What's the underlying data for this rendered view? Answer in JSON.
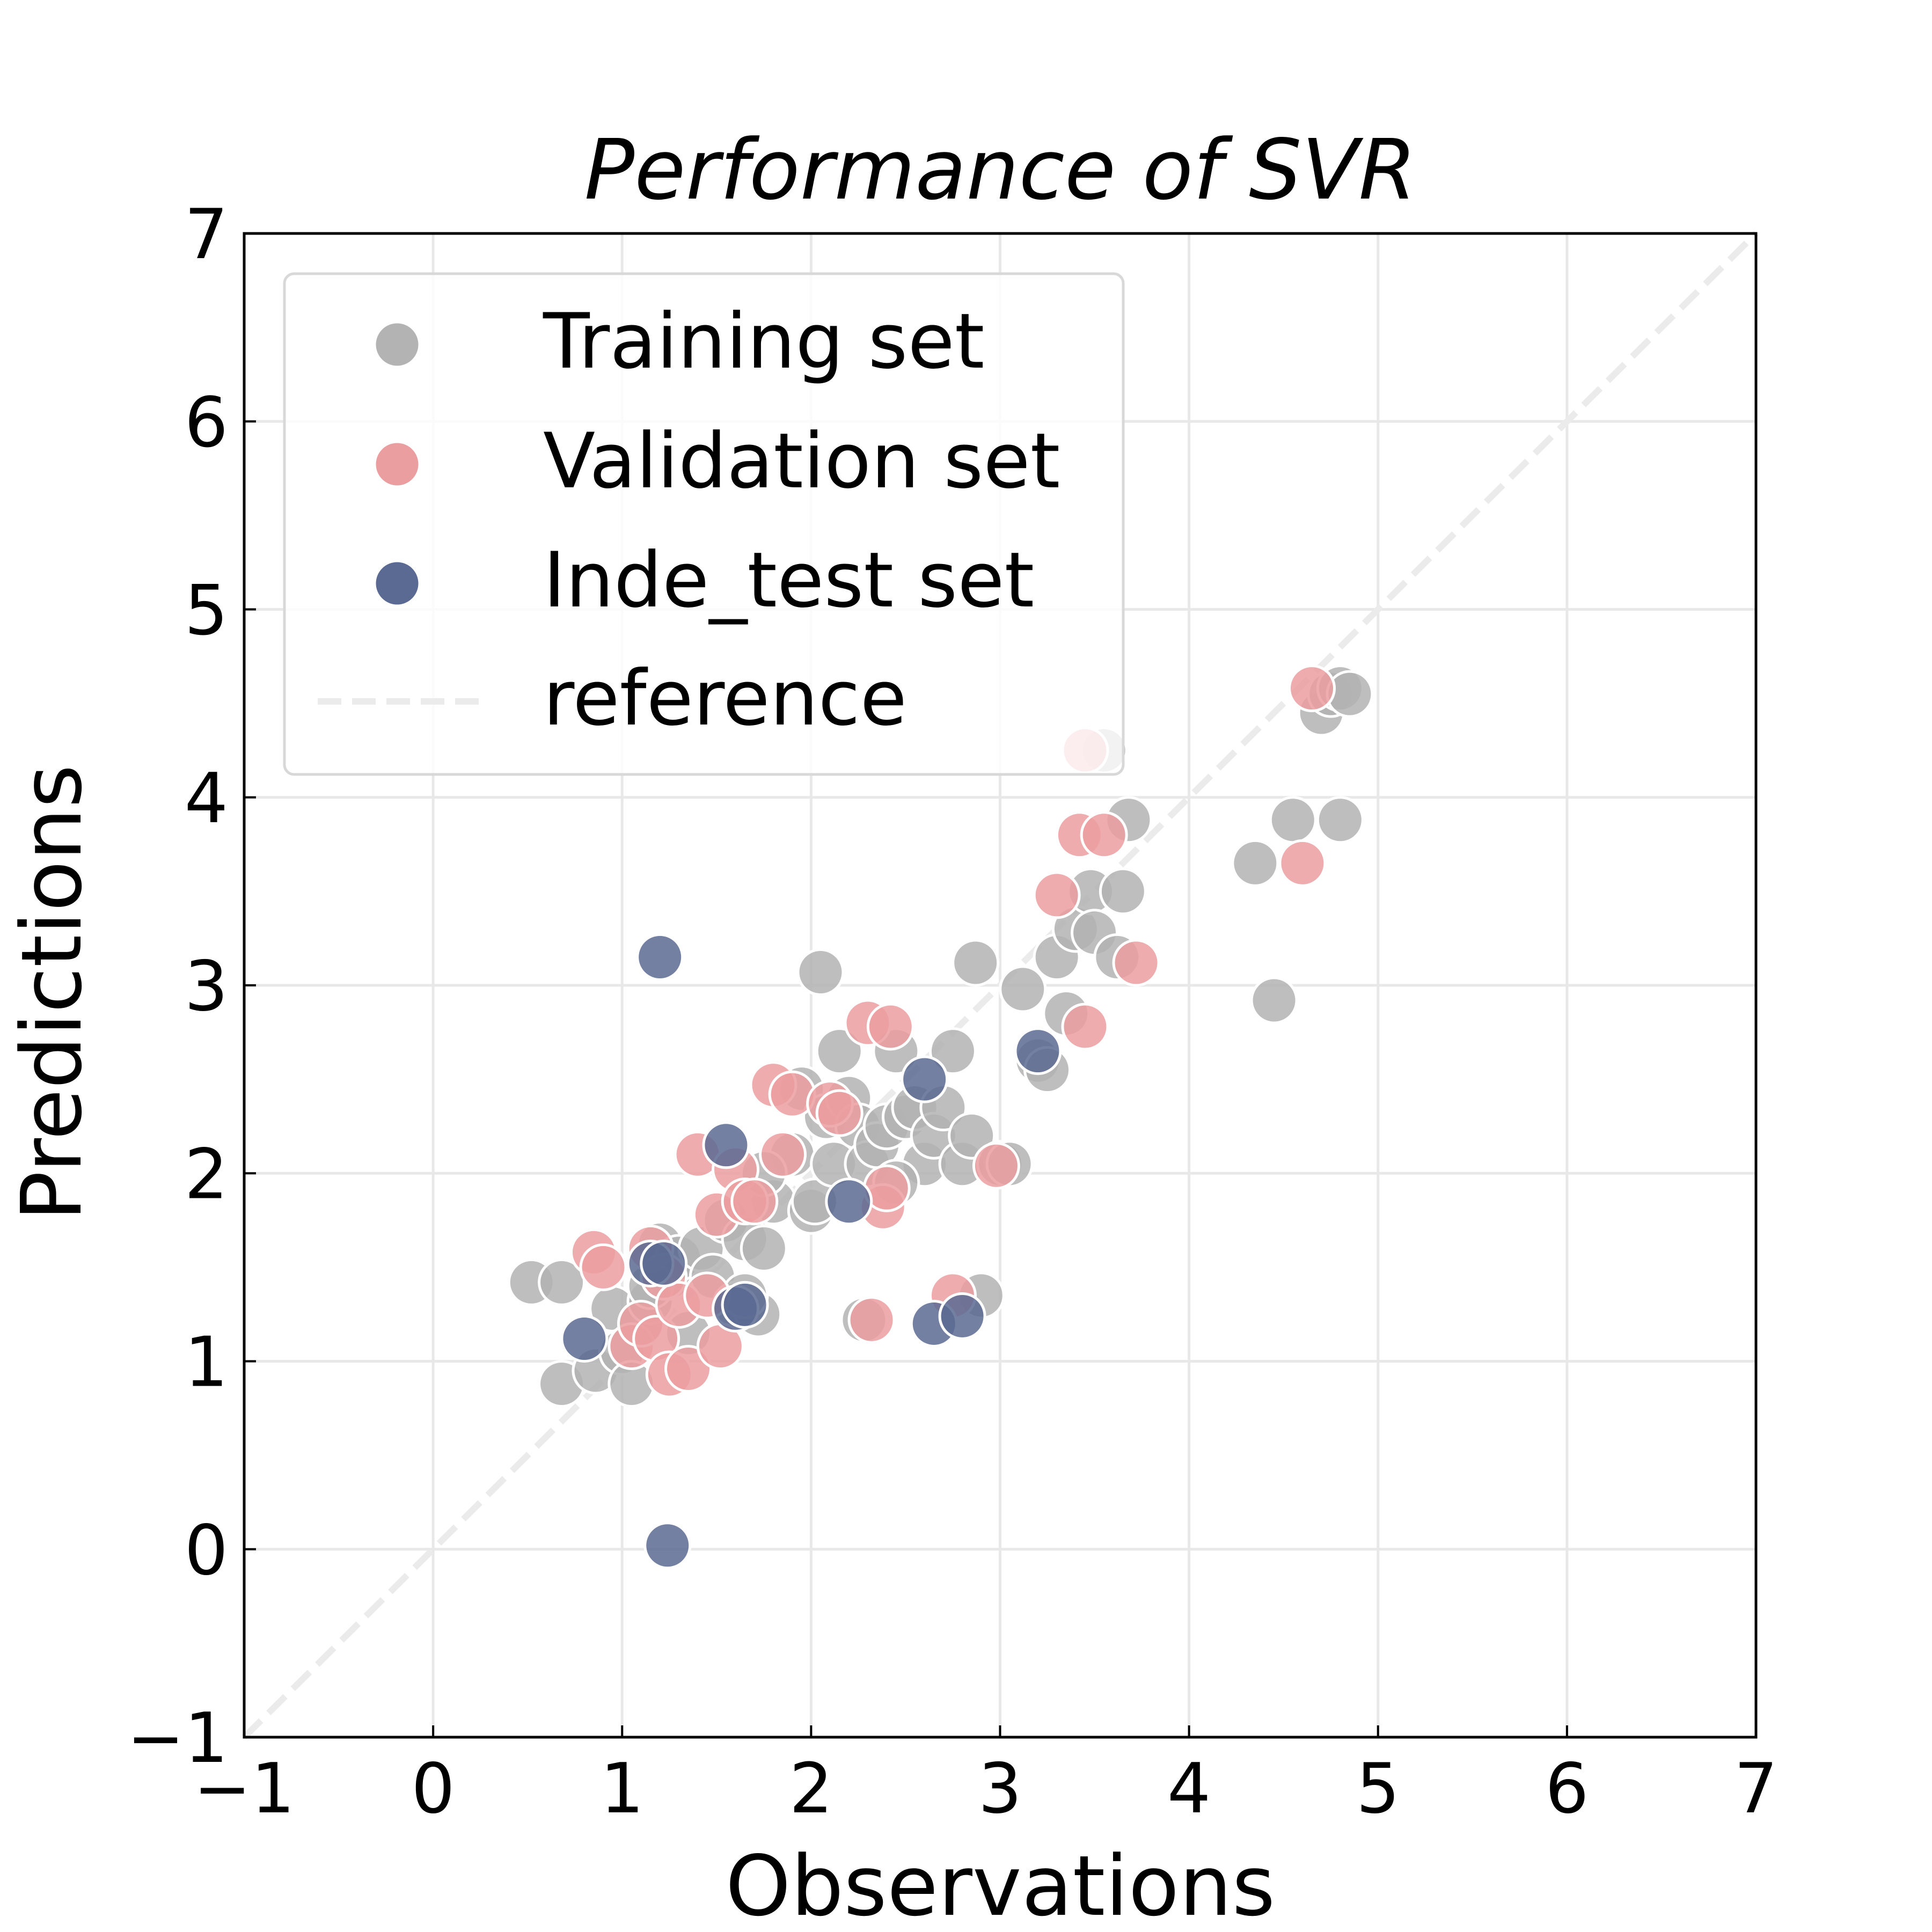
{
  "chart_data": {
    "type": "scatter",
    "title": "Performance of SVR",
    "xlabel": "Observations",
    "ylabel": "Predictions",
    "xlim": [
      -1,
      7
    ],
    "ylim": [
      -1,
      7
    ],
    "xticks": [
      "−1",
      "0",
      "1",
      "2",
      "3",
      "4",
      "5",
      "6",
      "7"
    ],
    "yticks": [
      "−1",
      "0",
      "1",
      "2",
      "3",
      "4",
      "5",
      "6",
      "7"
    ],
    "grid": true,
    "legend_position": "upper-left",
    "series": [
      {
        "name": "Training set",
        "color": "#b3b3b3",
        "points": [
          [
            0.52,
            1.42
          ],
          [
            0.68,
            1.42
          ],
          [
            0.68,
            0.88
          ],
          [
            0.86,
            0.95
          ],
          [
            0.95,
            1.28
          ],
          [
            1.0,
            1.05
          ],
          [
            1.05,
            0.88
          ],
          [
            1.1,
            1.2
          ],
          [
            1.15,
            1.32
          ],
          [
            1.2,
            1.62
          ],
          [
            1.25,
            1.45
          ],
          [
            1.3,
            1.55
          ],
          [
            1.35,
            1.15
          ],
          [
            1.42,
            1.6
          ],
          [
            1.48,
            1.45
          ],
          [
            1.55,
            1.75
          ],
          [
            1.6,
            1.3
          ],
          [
            1.65,
            1.65
          ],
          [
            1.72,
            1.25
          ],
          [
            1.75,
            1.6
          ],
          [
            1.8,
            1.85
          ],
          [
            1.9,
            2.1
          ],
          [
            1.95,
            2.45
          ],
          [
            2.0,
            1.8
          ],
          [
            2.02,
            1.85
          ],
          [
            2.05,
            3.07
          ],
          [
            2.08,
            2.3
          ],
          [
            2.12,
            2.05
          ],
          [
            2.15,
            2.65
          ],
          [
            2.2,
            2.4
          ],
          [
            2.25,
            2.25
          ],
          [
            2.3,
            2.05
          ],
          [
            2.35,
            2.15
          ],
          [
            2.4,
            2.25
          ],
          [
            2.45,
            2.65
          ],
          [
            2.5,
            2.3
          ],
          [
            2.55,
            2.35
          ],
          [
            2.6,
            2.05
          ],
          [
            2.65,
            2.2
          ],
          [
            2.7,
            2.35
          ],
          [
            2.75,
            2.65
          ],
          [
            2.8,
            2.05
          ],
          [
            2.85,
            2.2
          ],
          [
            2.87,
            3.12
          ],
          [
            2.9,
            1.35
          ],
          [
            3.0,
            2.05
          ],
          [
            3.05,
            2.05
          ],
          [
            3.12,
            2.98
          ],
          [
            3.2,
            2.6
          ],
          [
            3.25,
            2.55
          ],
          [
            3.3,
            3.15
          ],
          [
            3.35,
            2.85
          ],
          [
            3.4,
            3.3
          ],
          [
            3.48,
            3.5
          ],
          [
            3.5,
            3.28
          ],
          [
            3.62,
            3.15
          ],
          [
            3.65,
            3.5
          ],
          [
            3.68,
            3.88
          ],
          [
            4.35,
            3.65
          ],
          [
            4.45,
            2.92
          ],
          [
            4.55,
            3.88
          ],
          [
            4.7,
            4.45
          ],
          [
            4.75,
            4.55
          ],
          [
            4.8,
            4.58
          ],
          [
            4.8,
            3.88
          ],
          [
            4.85,
            4.55
          ],
          [
            3.55,
            4.25
          ],
          [
            1.65,
            1.35
          ],
          [
            1.75,
            2.0
          ],
          [
            2.28,
            1.22
          ],
          [
            2.45,
            1.95
          ],
          [
            1.15,
            1.4
          ]
        ]
      },
      {
        "name": "Validation set",
        "color": "#eb9ea0",
        "points": [
          [
            0.85,
            1.58
          ],
          [
            0.9,
            1.5
          ],
          [
            1.05,
            1.08
          ],
          [
            1.1,
            1.2
          ],
          [
            1.15,
            1.6
          ],
          [
            1.18,
            1.12
          ],
          [
            1.22,
            1.45
          ],
          [
            1.25,
            0.93
          ],
          [
            1.3,
            1.3
          ],
          [
            1.35,
            0.96
          ],
          [
            1.4,
            2.1
          ],
          [
            1.45,
            1.35
          ],
          [
            1.5,
            1.78
          ],
          [
            1.52,
            1.08
          ],
          [
            1.6,
            2.02
          ],
          [
            1.65,
            1.85
          ],
          [
            1.7,
            1.85
          ],
          [
            1.8,
            2.47
          ],
          [
            1.85,
            2.1
          ],
          [
            1.9,
            2.42
          ],
          [
            2.1,
            2.37
          ],
          [
            2.15,
            2.32
          ],
          [
            2.3,
            2.8
          ],
          [
            2.32,
            1.22
          ],
          [
            2.38,
            1.82
          ],
          [
            2.4,
            1.92
          ],
          [
            2.42,
            2.78
          ],
          [
            2.75,
            1.35
          ],
          [
            2.98,
            2.04
          ],
          [
            3.3,
            3.48
          ],
          [
            3.42,
            3.8
          ],
          [
            3.45,
            2.78
          ],
          [
            3.45,
            4.25
          ],
          [
            3.55,
            3.8
          ],
          [
            3.72,
            3.12
          ],
          [
            4.6,
            3.65
          ],
          [
            4.65,
            4.58
          ]
        ]
      },
      {
        "name": "Inde_test set",
        "color": "#5b6a92",
        "points": [
          [
            0.8,
            1.12
          ],
          [
            1.15,
            1.52
          ],
          [
            1.2,
            3.15
          ],
          [
            1.22,
            1.52
          ],
          [
            1.24,
            0.02
          ],
          [
            1.55,
            2.15
          ],
          [
            1.6,
            1.28
          ],
          [
            1.65,
            1.3
          ],
          [
            2.2,
            1.85
          ],
          [
            2.6,
            2.5
          ],
          [
            2.65,
            1.2
          ],
          [
            2.8,
            1.24
          ],
          [
            3.2,
            2.65
          ]
        ]
      }
    ],
    "reference_line": {
      "name": "reference",
      "style": "dashed",
      "color": "#ebebeb",
      "from": [
        -1,
        -1
      ],
      "to": [
        7,
        7
      ]
    }
  },
  "legend": {
    "items": [
      {
        "label": "Training set",
        "marker": "circle",
        "color": "#b3b3b3"
      },
      {
        "label": "Validation set",
        "marker": "circle",
        "color": "#eb9ea0"
      },
      {
        "label": "Inde_test set",
        "marker": "circle",
        "color": "#5b6a92"
      },
      {
        "label": "reference",
        "marker": "dashed-line",
        "color": "#ebebeb"
      }
    ]
  }
}
